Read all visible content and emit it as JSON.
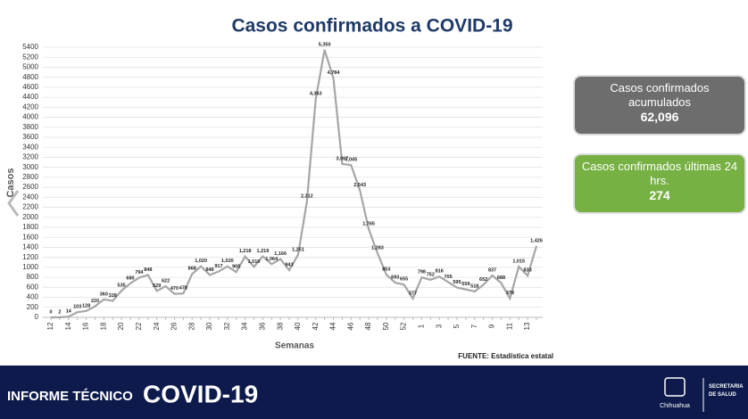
{
  "chart_data": {
    "type": "line",
    "title": "Casos confirmados a COVID-19",
    "y_label": "Casos",
    "x_label": "Semanas",
    "source": "FUENTE: Estadística estatal",
    "categories": [
      "12",
      null,
      "14",
      null,
      "16",
      null,
      "18",
      null,
      "20",
      null,
      "22",
      null,
      "24",
      null,
      "26",
      null,
      "28",
      null,
      "30",
      null,
      "32",
      null,
      "34",
      null,
      "36",
      null,
      "38",
      null,
      "40",
      null,
      "42",
      null,
      "44",
      null,
      "46",
      null,
      "48",
      null,
      "50",
      null,
      "52",
      null,
      "1",
      null,
      "3",
      null,
      "5",
      null,
      "7",
      null,
      "9",
      null,
      "11",
      null,
      "13",
      null
    ],
    "series": [
      {
        "name": "Casos",
        "color": "#a6a6a6",
        "values": [
          0,
          2,
          14,
          103,
          128,
          220,
          360,
          328,
          535,
          680,
          794,
          848,
          529,
          622,
          470,
          478,
          868,
          1020,
          848,
          917,
          1020,
          905,
          1218,
          1010,
          1219,
          1064,
          1166,
          943,
          1251,
          2312,
          4363,
          5350,
          4784,
          3067,
          3045,
          2543,
          1765,
          1283,
          853,
          693,
          655,
          377,
          798,
          752,
          816,
          705,
          595,
          559,
          518,
          652,
          837,
          688,
          378,
          1015,
          833,
          1426
        ],
        "value_labels": [
          "0",
          "2",
          "14",
          "103",
          "128",
          "220",
          "360",
          "328",
          "535",
          "680",
          "794",
          "848",
          "529",
          "622",
          "470",
          "478",
          "868",
          "1,020",
          "848",
          "917",
          "1,020",
          "905",
          "1,218",
          "1,010",
          "1,219",
          "1,064",
          "1,166",
          "943",
          "1,251",
          "2,312",
          "4,363",
          "5,350",
          "4,784",
          "3,067",
          "3,045",
          "2,543",
          "1,765",
          "1,283",
          "853",
          "693",
          "655",
          "377",
          "798",
          "752",
          "816",
          "705",
          "595",
          "559",
          "518",
          "652",
          "837",
          "688",
          "378",
          "1,015",
          "833",
          "1,426"
        ]
      }
    ],
    "ylim": [
      0,
      5400
    ],
    "yticks": [
      0,
      200,
      400,
      600,
      800,
      1000,
      1200,
      1400,
      1600,
      1800,
      2000,
      2200,
      2400,
      2600,
      2800,
      3000,
      3200,
      3400,
      3600,
      3800,
      4000,
      4200,
      4400,
      4600,
      4800,
      5000,
      5200,
      5400
    ],
    "grid": true
  },
  "summary": [
    {
      "label": "Casos confirmados acumulados",
      "value": "62,096",
      "color": "#6d6d6d"
    },
    {
      "label": "Casos confirmados últimas 24 hrs.",
      "value": "274",
      "color": "#77b043"
    }
  ],
  "footer": {
    "report": "INFORME TÉCNICO",
    "topic": "COVID-19",
    "state": "Chihuahua",
    "agency": "SECRETARÍA DE SALUD"
  }
}
